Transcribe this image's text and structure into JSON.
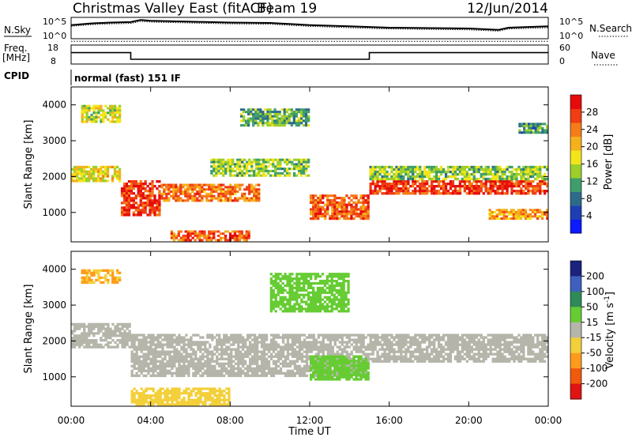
{
  "header": {
    "station": "Christmas Valley East (fitACF)",
    "beam": "Beam 19",
    "date": "12/Jun/2014"
  },
  "labels": {
    "nsky": "N.Sky",
    "nsearch": "N.Search",
    "freq_line1": "Freq.",
    "freq_line2": "[MHz]",
    "nave": "Nave",
    "cpid": "CPID",
    "cpid_value": "normal (fast) 151 IF"
  },
  "noise_axis": {
    "ticks": [
      "10^5",
      "10^0"
    ]
  },
  "freq_axis": {
    "left_ticks": [
      "18",
      "8"
    ],
    "right_ticks": [
      "60",
      "0"
    ]
  },
  "chart_data": [
    {
      "type": "line",
      "name": "noise",
      "x": [
        0,
        1,
        2,
        3,
        3.5,
        4,
        6,
        8,
        10,
        12,
        14,
        16,
        18,
        20,
        21.5,
        22,
        24
      ],
      "series": [
        {
          "name": "N.Sky",
          "values": [
            3.2,
            3.6,
            3.8,
            3.9,
            4.4,
            4.2,
            4.0,
            3.8,
            3.7,
            3.2,
            2.9,
            2.6,
            2.5,
            2.4,
            2.1,
            2.6,
            2.9
          ]
        },
        {
          "name": "N.Search",
          "values": [
            2.9,
            3.3,
            3.5,
            3.6,
            4.1,
            3.9,
            3.7,
            3.5,
            3.4,
            2.9,
            2.6,
            2.3,
            2.2,
            2.1,
            1.8,
            2.3,
            2.6
          ]
        }
      ],
      "ylim": [
        0,
        5
      ],
      "y_scale": "log"
    },
    {
      "type": "line",
      "name": "frequency",
      "x": [
        0,
        3,
        3,
        15,
        15,
        24
      ],
      "series": [
        {
          "name": "Freq.",
          "values": [
            14,
            14,
            10.5,
            10.5,
            14,
            14
          ]
        },
        {
          "name": "Nave",
          "values": [
            20,
            20,
            20,
            20,
            20,
            20
          ]
        }
      ],
      "ylim": [
        8,
        18
      ]
    },
    {
      "type": "heatmap",
      "name": "power",
      "xlabel": "",
      "ylabel": "Slant Range [km]",
      "xlim": [
        0,
        24
      ],
      "ylim": [
        180,
        4500
      ],
      "y_ticks": [
        1000,
        2000,
        3000,
        4000
      ],
      "colorbar": {
        "label": "Power [dB]",
        "ticks": [
          4,
          8,
          12,
          16,
          20,
          24,
          28
        ],
        "colors": [
          "#0c1aff",
          "#1d3fb3",
          "#2d6b8a",
          "#3f9f6a",
          "#9ccf2a",
          "#f2e51a",
          "#f5b11c",
          "#f57c18",
          "#f03d14",
          "#e60b0b"
        ]
      },
      "bands": [
        {
          "t": [
            0.0,
            2.5
          ],
          "r": [
            1850,
            2300
          ],
          "p": 18
        },
        {
          "t": [
            0.5,
            2.5
          ],
          "r": [
            3500,
            4000
          ],
          "p": 16
        },
        {
          "t": [
            2.5,
            4.5
          ],
          "r": [
            900,
            1900
          ],
          "p": 28
        },
        {
          "t": [
            4.5,
            9.5
          ],
          "r": [
            1300,
            1800
          ],
          "p": 24
        },
        {
          "t": [
            7.0,
            12.0
          ],
          "r": [
            2000,
            2500
          ],
          "p": 14
        },
        {
          "t": [
            8.5,
            12.0
          ],
          "r": [
            3400,
            3900
          ],
          "p": 12
        },
        {
          "t": [
            12.0,
            15.0
          ],
          "r": [
            800,
            1500
          ],
          "p": 26
        },
        {
          "t": [
            5.0,
            9.0
          ],
          "r": [
            200,
            500
          ],
          "p": 26
        },
        {
          "t": [
            15.0,
            24.0
          ],
          "r": [
            1500,
            1900
          ],
          "p": 28
        },
        {
          "t": [
            15.0,
            24.0
          ],
          "r": [
            1900,
            2300
          ],
          "p": 14
        },
        {
          "t": [
            21.0,
            24.0
          ],
          "r": [
            800,
            1100
          ],
          "p": 22
        },
        {
          "t": [
            22.5,
            24.0
          ],
          "r": [
            3200,
            3500
          ],
          "p": 10
        }
      ]
    },
    {
      "type": "heatmap",
      "name": "velocity",
      "xlabel": "Time UT",
      "ylabel": "Slant Range [km]",
      "xlim": [
        0,
        24
      ],
      "ylim": [
        180,
        4500
      ],
      "x_ticks": [
        "00:00",
        "04:00",
        "08:00",
        "12:00",
        "16:00",
        "20:00",
        "00:00"
      ],
      "y_ticks": [
        1000,
        2000,
        3000,
        4000
      ],
      "colorbar": {
        "label": "Velocity [m s^-1]",
        "ticks": [
          200,
          100,
          50,
          15,
          -15,
          -50,
          -100,
          -200
        ],
        "colors": [
          "#1a237e",
          "#3f5fbf",
          "#2e8b57",
          "#66cc33",
          "#b5b5aa",
          "#f3cf3a",
          "#ff9b1a",
          "#f05a0c",
          "#e01414"
        ]
      },
      "bands": [
        {
          "t": [
            0.0,
            3.0
          ],
          "r": [
            1800,
            2500
          ],
          "v": 0
        },
        {
          "t": [
            3.0,
            15.0
          ],
          "r": [
            1000,
            2200
          ],
          "v": 0
        },
        {
          "t": [
            15.0,
            24.0
          ],
          "r": [
            1400,
            2200
          ],
          "v": 0
        },
        {
          "t": [
            10.0,
            14.0
          ],
          "r": [
            2800,
            3900
          ],
          "v": 40
        },
        {
          "t": [
            12.0,
            15.0
          ],
          "r": [
            900,
            1600
          ],
          "v": 40
        },
        {
          "t": [
            0.5,
            2.5
          ],
          "r": [
            3600,
            4000
          ],
          "v": -50
        },
        {
          "t": [
            3.0,
            8.0
          ],
          "r": [
            200,
            700
          ],
          "v": -40
        }
      ]
    }
  ]
}
